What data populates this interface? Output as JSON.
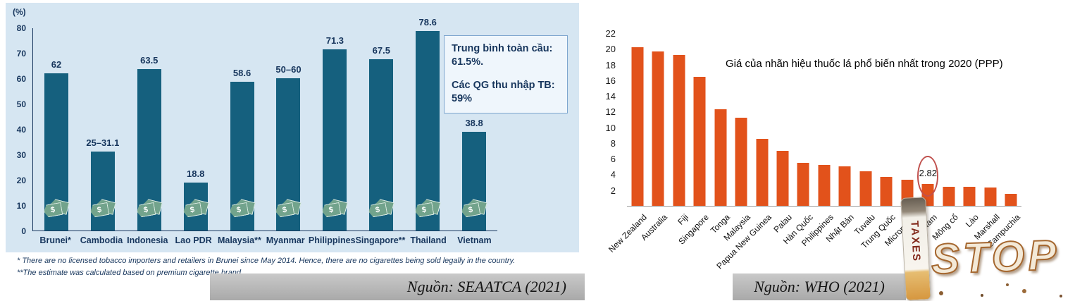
{
  "chart_data": [
    {
      "type": "bar",
      "title": "",
      "unit_label": "(%)",
      "ylabel": "(%)",
      "ylim": [
        0,
        80
      ],
      "y_ticks": [
        0,
        10,
        20,
        30,
        40,
        50,
        60,
        70,
        80
      ],
      "grid": false,
      "legend": "none",
      "bar_color": "#15607E",
      "tag_symbol": "$",
      "categories": [
        "Brunei*",
        "Cambodia",
        "Indonesia",
        "Lao PDR",
        "Malaysia**",
        "Myanmar",
        "Philippines",
        "Singapore**",
        "Thailand",
        "Vietnam"
      ],
      "values": [
        62,
        31.1,
        63.5,
        18.8,
        58.6,
        60,
        71.3,
        67.5,
        78.6,
        38.8
      ],
      "value_labels": [
        "62",
        "25–31.1",
        "63.5",
        "18.8",
        "58.6",
        "50–60",
        "71.3",
        "67.5",
        "78.6",
        "38.8"
      ],
      "annotation_box": {
        "line1": "Trung bình toàn cầu:",
        "line1_value": "61.5%.",
        "line2": "Các QG thu nhập TB:",
        "line2_value": "59%"
      },
      "footnotes": [
        "* There are no licensed tobacco importers and retailers in Brunei since May 2014. Hence, there are no cigarettes being sold legally in the country.",
        "**The estimate was calculated based on premium cigarette brand."
      ],
      "source": "Nguồn: SEAATCA (2021)"
    },
    {
      "type": "bar",
      "title": "Giá của nhãn hiệu thuốc lá phổ biến nhất trong 2020 (PPP)",
      "ylim": [
        0,
        22
      ],
      "y_ticks": [
        2,
        4,
        6,
        8,
        10,
        12,
        14,
        16,
        18,
        20,
        22
      ],
      "grid": false,
      "legend": "none",
      "bar_color": "#E2521B",
      "categories": [
        "New Zealand",
        "Australia",
        "Fiji",
        "Singapore",
        "Tonga",
        "Malaysia",
        "Papua New Guinea",
        "Palau",
        "Hàn Quốc",
        "Philippines",
        "Nhật Bản",
        "Tuvalu",
        "Trung Quốc",
        "Micronesia",
        "Việt Nam",
        "Mông cổ",
        "Lào",
        "Marshall",
        "Campuchia"
      ],
      "values": [
        20.2,
        19.7,
        19.2,
        16.4,
        12.3,
        11.2,
        8.5,
        7.0,
        5.5,
        5.2,
        5.0,
        4.4,
        3.7,
        3.3,
        2.82,
        2.4,
        2.4,
        2.3,
        1.5
      ],
      "highlight": {
        "index": 14,
        "label": "2.82",
        "ellipse_color": "#C0504D"
      },
      "source": "Nguồn: WHO (2021)",
      "decoration": {
        "taxes": "TAXES",
        "stop": "STOP"
      }
    }
  ]
}
